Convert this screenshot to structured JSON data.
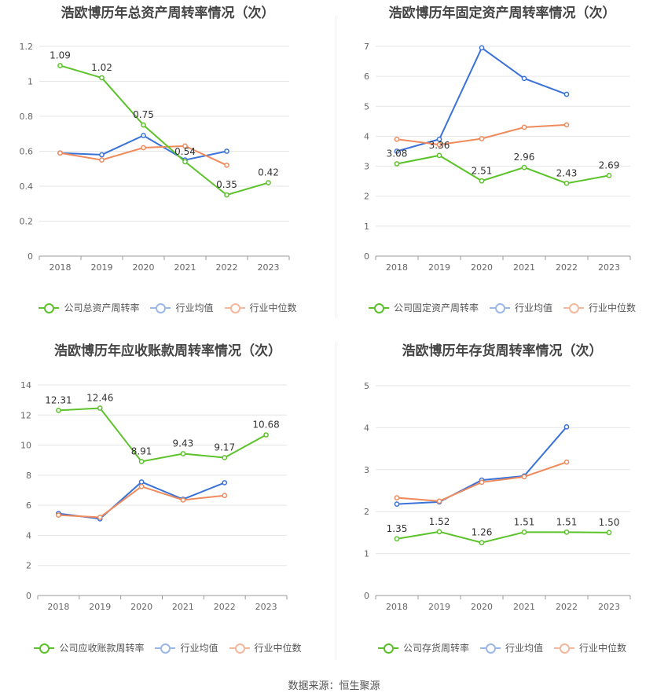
{
  "colors": {
    "company": "#5cc22a",
    "avg": "#3a72d8",
    "median": "#ef8a5c",
    "grid": "#e6e6e6",
    "axis": "#999999",
    "text": "#666666"
  },
  "source_text": "数据来源：恒生聚源",
  "chart_data": [
    {
      "type": "line",
      "title": "浩欧博历年总资产周转率情况（次）",
      "categories": [
        "2018",
        "2019",
        "2020",
        "2021",
        "2022",
        "2023"
      ],
      "ylim": [
        0,
        1.2
      ],
      "yticks": [
        "0",
        "0.2",
        "0.4",
        "0.6",
        "0.8",
        "1",
        "1.2"
      ],
      "series": [
        {
          "name": "公司总资产周转率",
          "role": "company",
          "values": [
            1.09,
            1.02,
            0.75,
            0.54,
            0.35,
            0.42
          ],
          "labels": [
            "1.09",
            "1.02",
            "0.75",
            "0.54",
            "0.35",
            "0.42"
          ]
        },
        {
          "name": "行业均值",
          "role": "avg",
          "values": [
            0.59,
            0.58,
            0.69,
            0.55,
            0.6,
            null
          ]
        },
        {
          "name": "行业中位数",
          "role": "median",
          "values": [
            0.59,
            0.55,
            0.62,
            0.63,
            0.52,
            null
          ]
        }
      ]
    },
    {
      "type": "line",
      "title": "浩欧博历年固定资产周转率情况（次）",
      "categories": [
        "2018",
        "2019",
        "2020",
        "2021",
        "2022",
        "2023"
      ],
      "ylim": [
        0,
        7
      ],
      "yticks": [
        "0",
        "1",
        "2",
        "3",
        "4",
        "5",
        "6",
        "7"
      ],
      "series": [
        {
          "name": "公司固定资产周转率",
          "role": "company",
          "values": [
            3.08,
            3.36,
            2.51,
            2.96,
            2.43,
            2.69
          ],
          "labels": [
            "3.08",
            "3.36",
            "2.51",
            "2.96",
            "2.43",
            "2.69"
          ]
        },
        {
          "name": "行业均值",
          "role": "avg",
          "values": [
            3.5,
            3.9,
            6.95,
            5.93,
            5.4,
            null
          ]
        },
        {
          "name": "行业中位数",
          "role": "median",
          "values": [
            3.9,
            3.72,
            3.92,
            4.3,
            4.38,
            null
          ]
        }
      ]
    },
    {
      "type": "line",
      "title": "浩欧博历年应收账款周转率情况（次）",
      "categories": [
        "2018",
        "2019",
        "2020",
        "2021",
        "2022",
        "2023"
      ],
      "ylim": [
        0,
        14
      ],
      "yticks": [
        "0",
        "2",
        "4",
        "6",
        "8",
        "10",
        "12",
        "14"
      ],
      "series": [
        {
          "name": "公司应收账款周转率",
          "role": "company",
          "values": [
            12.31,
            12.46,
            8.91,
            9.43,
            9.17,
            10.68
          ],
          "labels": [
            "12.31",
            "12.46",
            "8.91",
            "9.43",
            "9.17",
            "10.68"
          ]
        },
        {
          "name": "行业均值",
          "role": "avg",
          "values": [
            5.45,
            5.1,
            7.55,
            6.4,
            7.5,
            null
          ]
        },
        {
          "name": "行业中位数",
          "role": "median",
          "values": [
            5.35,
            5.2,
            7.25,
            6.35,
            6.65,
            null
          ]
        }
      ]
    },
    {
      "type": "line",
      "title": "浩欧博历年存货周转率情况（次）",
      "categories": [
        "2018",
        "2019",
        "2020",
        "2021",
        "2022",
        "2023"
      ],
      "ylim": [
        0,
        5
      ],
      "yticks": [
        "0",
        "1",
        "2",
        "3",
        "4",
        "5"
      ],
      "series": [
        {
          "name": "公司存货周转率",
          "role": "company",
          "values": [
            1.35,
            1.52,
            1.26,
            1.51,
            1.51,
            1.5
          ],
          "labels": [
            "1.35",
            "1.52",
            "1.26",
            "1.51",
            "1.51",
            "1.50"
          ]
        },
        {
          "name": "行业均值",
          "role": "avg",
          "values": [
            2.18,
            2.23,
            2.75,
            2.85,
            4.02,
            null
          ]
        },
        {
          "name": "行业中位数",
          "role": "median",
          "values": [
            2.33,
            2.25,
            2.7,
            2.83,
            3.18,
            null
          ]
        }
      ]
    }
  ]
}
